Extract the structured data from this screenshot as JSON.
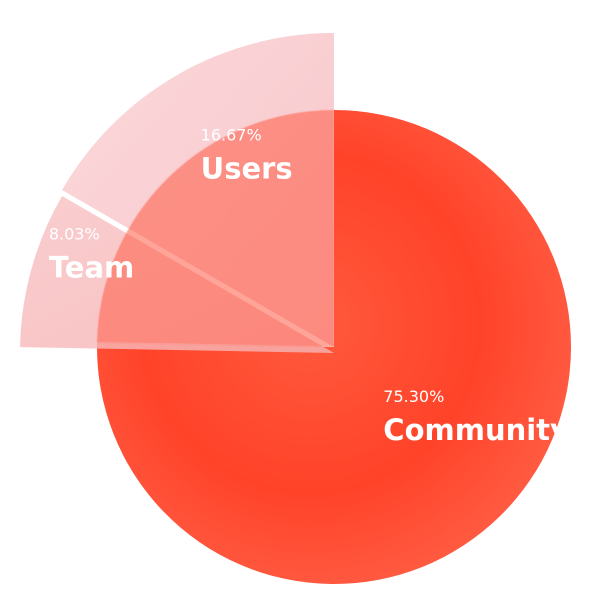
{
  "chart_data": {
    "type": "pie",
    "categories": [
      "Community",
      "Team",
      "Users"
    ],
    "values": [
      75.3,
      8.03,
      16.67
    ],
    "labels": [
      "75.30%",
      "8.03%",
      "16.67%"
    ],
    "colors": {
      "Community": "#ff4a33",
      "Team": "#f9b7b8",
      "Users": "#f8c9cd"
    },
    "exploded": [
      "Team",
      "Users"
    ],
    "legend": "none"
  }
}
